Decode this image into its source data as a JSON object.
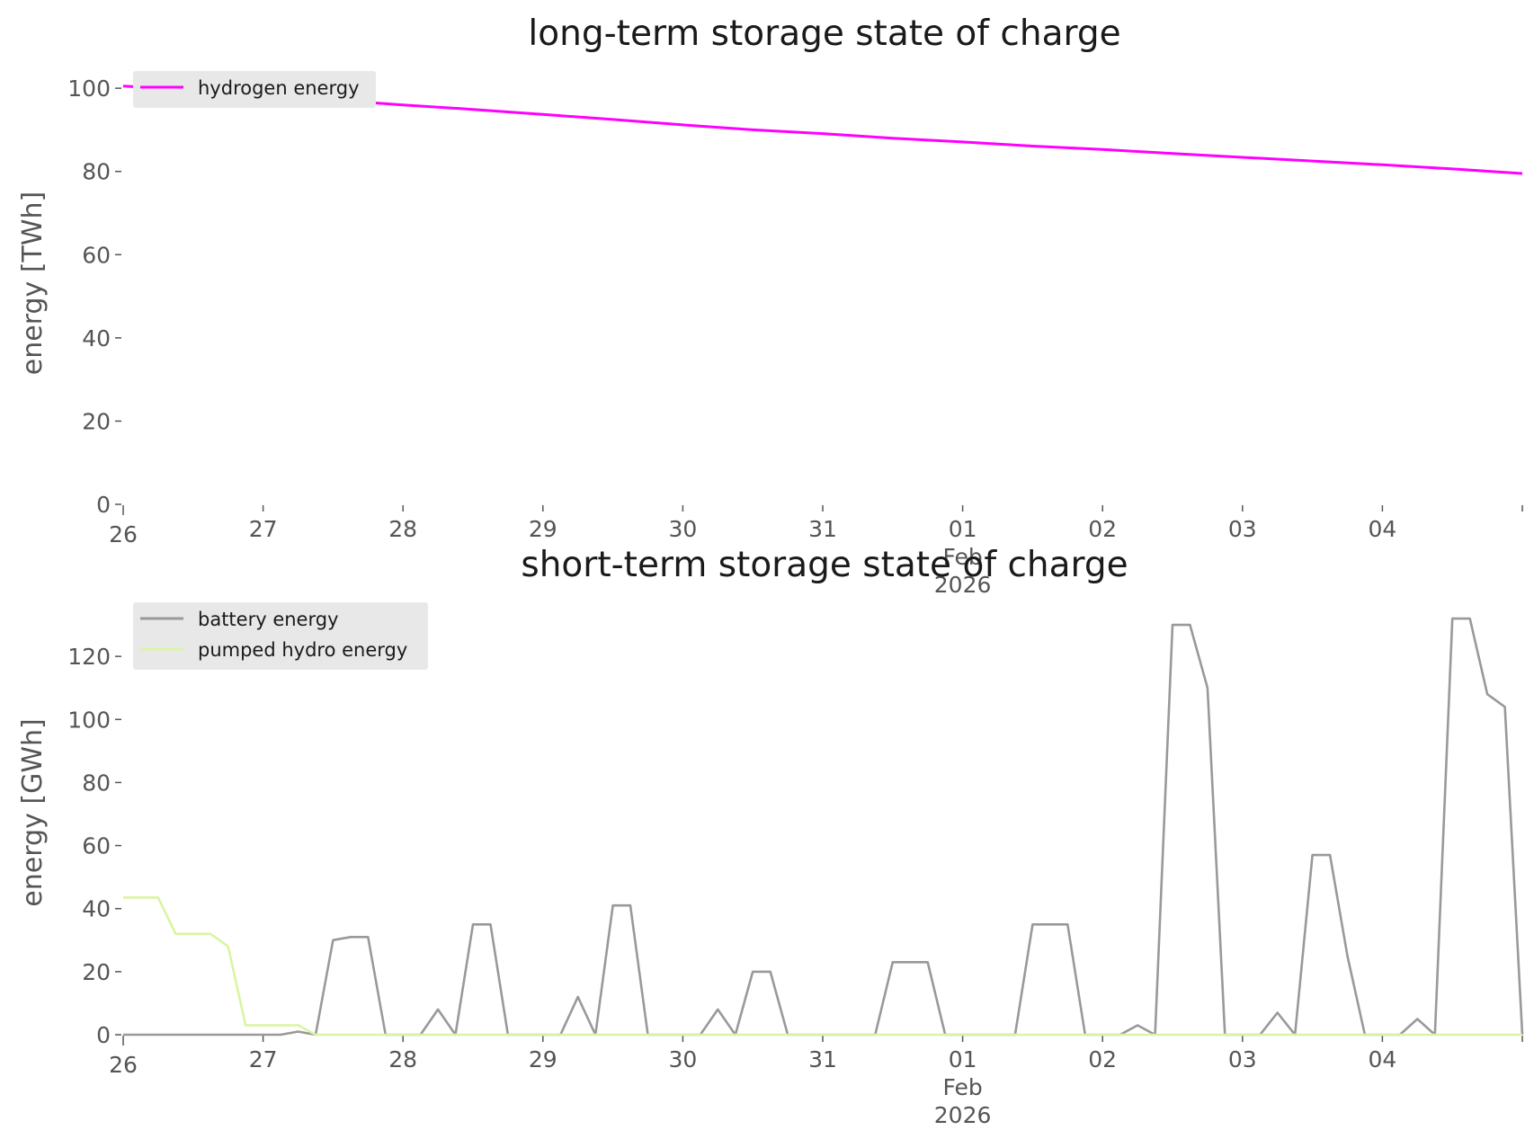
{
  "colors": {
    "hydrogen": "#ff00ff",
    "battery": "#999999",
    "pumped_hydro": "#d8f5a2",
    "legend_bg": "#e8e8e8",
    "text": "#555555"
  },
  "chart_data": [
    {
      "type": "line",
      "title": "long-term storage state of charge",
      "xlabel": "",
      "ylabel": "energy [TWh]",
      "ylim": [
        0,
        105
      ],
      "yticks": [
        0,
        20,
        40,
        60,
        80,
        100
      ],
      "xlim": [
        "2026-01-26",
        "2026-02-05"
      ],
      "x_ticks": [
        {
          "date": "2026-01-26",
          "label": "26"
        },
        {
          "date": "2026-01-27",
          "label": "27"
        },
        {
          "date": "2026-01-28",
          "label": "28"
        },
        {
          "date": "2026-01-29",
          "label": "29"
        },
        {
          "date": "2026-01-30",
          "label": "30"
        },
        {
          "date": "2026-01-31",
          "label": "31"
        },
        {
          "date": "2026-02-01",
          "label": "01",
          "sub": [
            "Feb",
            "2026"
          ]
        },
        {
          "date": "2026-02-02",
          "label": "02"
        },
        {
          "date": "2026-02-03",
          "label": "03"
        },
        {
          "date": "2026-02-04",
          "label": "04"
        },
        {
          "date": "2026-02-05",
          "label": ""
        }
      ],
      "legend": "upper-left",
      "grid": false,
      "series": [
        {
          "name": "hydrogen energy",
          "color": "#ff00ff",
          "x": [
            "2026-01-26 00:00",
            "2026-01-26 12:00",
            "2026-01-27 00:00",
            "2026-01-27 12:00",
            "2026-01-28 00:00",
            "2026-01-28 12:00",
            "2026-01-29 00:00",
            "2026-01-29 12:00",
            "2026-01-30 00:00",
            "2026-01-30 12:00",
            "2026-01-31 00:00",
            "2026-01-31 12:00",
            "2026-02-01 00:00",
            "2026-02-01 12:00",
            "2026-02-02 00:00",
            "2026-02-02 12:00",
            "2026-02-03 00:00",
            "2026-02-03 12:00",
            "2026-02-04 00:00",
            "2026-02-04 12:00",
            "2026-02-05 00:00"
          ],
          "y": [
            100.5,
            99.6,
            98.3,
            97.2,
            96.0,
            94.9,
            93.7,
            92.5,
            91.2,
            90.0,
            89.1,
            88.0,
            87.1,
            86.1,
            85.3,
            84.3,
            83.4,
            82.5,
            81.6,
            80.6,
            79.5
          ]
        }
      ]
    },
    {
      "type": "line",
      "title": "short-term storage state of charge",
      "xlabel": "",
      "ylabel": "energy [GWh]",
      "ylim": [
        0,
        140
      ],
      "yticks": [
        0,
        20,
        40,
        60,
        80,
        100,
        120
      ],
      "xlim": [
        "2026-01-26",
        "2026-02-05"
      ],
      "x_ticks": [
        {
          "date": "2026-01-26",
          "label": "26"
        },
        {
          "date": "2026-01-27",
          "label": "27"
        },
        {
          "date": "2026-01-28",
          "label": "28"
        },
        {
          "date": "2026-01-29",
          "label": "29"
        },
        {
          "date": "2026-01-30",
          "label": "30"
        },
        {
          "date": "2026-01-31",
          "label": "31"
        },
        {
          "date": "2026-02-01",
          "label": "01",
          "sub": [
            "Feb",
            "2026"
          ]
        },
        {
          "date": "2026-02-02",
          "label": "02"
        },
        {
          "date": "2026-02-03",
          "label": "03"
        },
        {
          "date": "2026-02-04",
          "label": "04"
        },
        {
          "date": "2026-02-05",
          "label": ""
        }
      ],
      "legend": "upper-left",
      "grid": false,
      "series": [
        {
          "name": "battery energy",
          "color": "#999999",
          "x": [
            "2026-01-26 00:00",
            "2026-01-27 03:00",
            "2026-01-27 06:00",
            "2026-01-27 09:00",
            "2026-01-27 12:00",
            "2026-01-27 15:00",
            "2026-01-27 18:00",
            "2026-01-27 21:00",
            "2026-01-28 03:00",
            "2026-01-28 06:00",
            "2026-01-28 09:00",
            "2026-01-28 12:00",
            "2026-01-28 15:00",
            "2026-01-28 18:00",
            "2026-01-28 21:00",
            "2026-01-29 03:00",
            "2026-01-29 06:00",
            "2026-01-29 09:00",
            "2026-01-29 12:00",
            "2026-01-29 15:00",
            "2026-01-29 18:00",
            "2026-01-29 21:00",
            "2026-01-30 03:00",
            "2026-01-30 06:00",
            "2026-01-30 09:00",
            "2026-01-30 12:00",
            "2026-01-30 15:00",
            "2026-01-30 18:00",
            "2026-01-30 21:00",
            "2026-01-31 09:00",
            "2026-01-31 12:00",
            "2026-01-31 15:00",
            "2026-01-31 18:00",
            "2026-01-31 21:00",
            "2026-02-01 09:00",
            "2026-02-01 12:00",
            "2026-02-01 15:00",
            "2026-02-01 18:00",
            "2026-02-01 21:00",
            "2026-02-02 03:00",
            "2026-02-02 06:00",
            "2026-02-02 09:00",
            "2026-02-02 12:00",
            "2026-02-02 15:00",
            "2026-02-02 18:00",
            "2026-02-02 21:00",
            "2026-02-03 03:00",
            "2026-02-03 06:00",
            "2026-02-03 09:00",
            "2026-02-03 12:00",
            "2026-02-03 15:00",
            "2026-02-03 18:00",
            "2026-02-03 21:00",
            "2026-02-04 03:00",
            "2026-02-04 06:00",
            "2026-02-04 09:00",
            "2026-02-04 12:00",
            "2026-02-04 15:00",
            "2026-02-04 18:00",
            "2026-02-04 21:00",
            "2026-02-05 00:00"
          ],
          "y": [
            0,
            0,
            1,
            0,
            30,
            31,
            31,
            0,
            0,
            8,
            0,
            35,
            35,
            0,
            0,
            0,
            12,
            0,
            41,
            41,
            0,
            0,
            0,
            8,
            0,
            20,
            20,
            0,
            0,
            0,
            23,
            23,
            23,
            0,
            0,
            35,
            35,
            35,
            0,
            0,
            3,
            0,
            130,
            130,
            110,
            0,
            0,
            7,
            0,
            57,
            57,
            25,
            0,
            0,
            5,
            0,
            132,
            132,
            108,
            104,
            0
          ]
        },
        {
          "name": "pumped hydro energy",
          "color": "#d8f5a2",
          "x": [
            "2026-01-26 00:00",
            "2026-01-26 06:00",
            "2026-01-26 09:00",
            "2026-01-26 12:00",
            "2026-01-26 15:00",
            "2026-01-26 18:00",
            "2026-01-26 21:00",
            "2026-01-27 00:00",
            "2026-01-27 06:00",
            "2026-01-27 09:00",
            "2026-02-05 00:00"
          ],
          "y": [
            43.5,
            43.5,
            32,
            32,
            32,
            28,
            3,
            3,
            3,
            0,
            0
          ]
        }
      ]
    }
  ]
}
